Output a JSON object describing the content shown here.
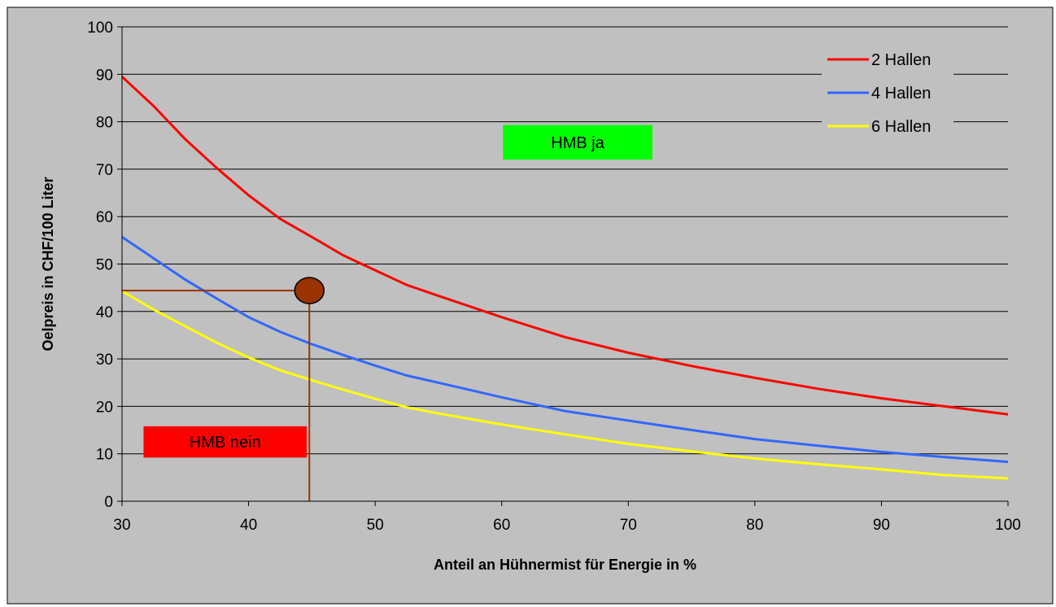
{
  "chart_data": {
    "type": "line",
    "title": "",
    "xlabel": "Anteil an Hühnermist für Energie in %",
    "ylabel": "Oelpreis in CHF/100 Liter",
    "xlim": [
      30,
      100
    ],
    "ylim": [
      0,
      100
    ],
    "xticks": [
      "30",
      "40",
      "50",
      "60",
      "70",
      "80",
      "90",
      "100"
    ],
    "yticks": [
      "0",
      "10",
      "20",
      "30",
      "40",
      "50",
      "60",
      "70",
      "80",
      "90",
      "100"
    ],
    "grid": "horizontal",
    "legend_position": "top-right",
    "x": [
      30,
      32.5,
      35,
      37.5,
      40,
      42.5,
      45,
      47.5,
      50,
      52.5,
      55,
      60,
      65,
      70,
      75,
      80,
      85,
      90,
      95,
      100
    ],
    "series": [
      {
        "name": "2 Hallen",
        "color": "#ff0000",
        "values": [
          89.5,
          83.3,
          76.3,
          70.2,
          64.5,
          59.5,
          55.7,
          51.8,
          48.7,
          45.6,
          43.3,
          38.8,
          34.6,
          31.3,
          28.5,
          26,
          23.7,
          21.7,
          20,
          18.3
        ]
      },
      {
        "name": "4 Hallen",
        "color": "#3366ff",
        "values": [
          55.7,
          51.2,
          46.7,
          42.7,
          38.8,
          35.7,
          33.1,
          30.8,
          28.6,
          26.5,
          25,
          21.9,
          19,
          17,
          15,
          13.1,
          11.7,
          10.4,
          9.3,
          8.3
        ]
      },
      {
        "name": "6 Hallen",
        "color": "#ffff00",
        "values": [
          44.3,
          40.4,
          36.9,
          33.4,
          30.3,
          27.6,
          25.5,
          23.5,
          21.6,
          19.8,
          18.5,
          16.2,
          14.1,
          12.1,
          10.5,
          9,
          7.8,
          6.7,
          5.5,
          4.8
        ]
      }
    ],
    "marker": {
      "x": 44.8,
      "y": 44.4,
      "color": "#993300"
    },
    "annotations": [
      {
        "text": "HMB ja",
        "background": "#00ff00",
        "x_from": 60.1,
        "x_to": 71.9,
        "y_from": 72.0,
        "y_to": 79.3
      },
      {
        "text": "HMB nein",
        "background": "#ff0000",
        "x_from": 31.7,
        "x_to": 44.6,
        "y_from": 9.2,
        "y_to": 15.8
      }
    ],
    "colors": {
      "plot_background": "#c0c0c0",
      "chart_background": "#c0c0c0"
    }
  }
}
